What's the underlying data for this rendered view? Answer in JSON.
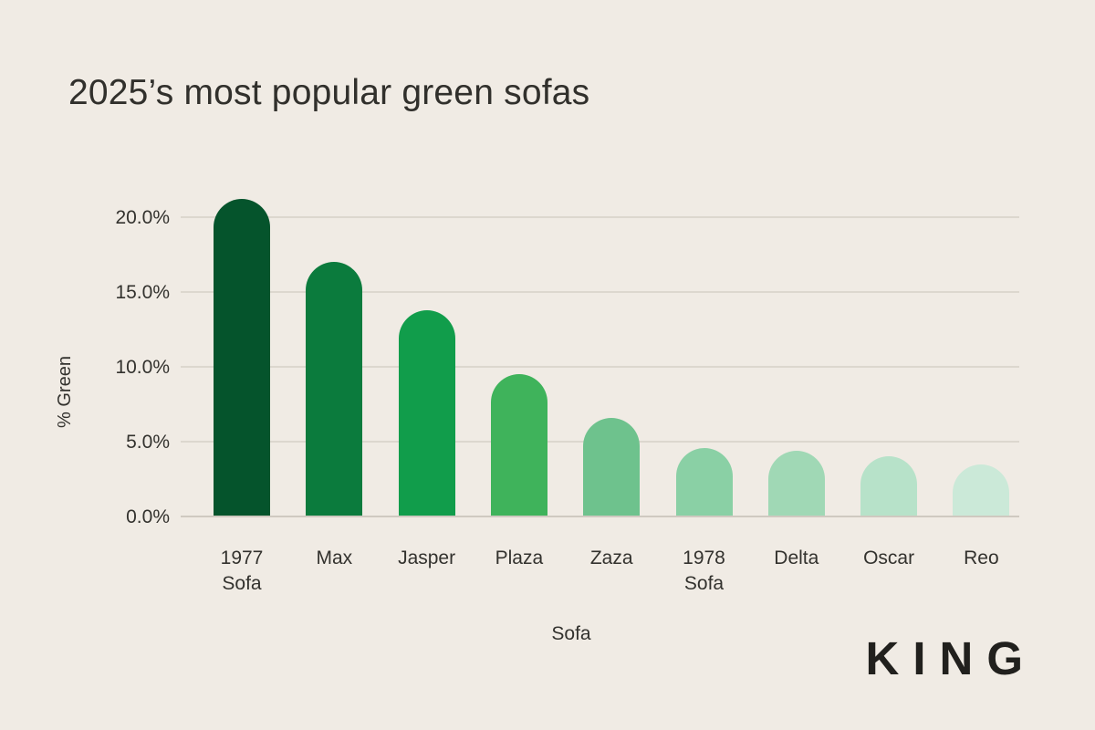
{
  "page": {
    "background": "#f0ebe4",
    "text_color": "#33322e",
    "gridline_color": "#dcd7ce",
    "baseline_color": "#cfc9c0"
  },
  "header": {
    "title": "2025’s most popular green sofas"
  },
  "brand": {
    "logo_text": "KING",
    "logo_color": "#21201d"
  },
  "chart_data": {
    "type": "bar",
    "title": "2025’s most popular green sofas",
    "xlabel": "Sofa",
    "ylabel": "% Green",
    "categories": [
      "1977 Sofa",
      "Max",
      "Jasper",
      "Plaza",
      "Zaza",
      "1978 Sofa",
      "Delta",
      "Oscar",
      "Reo"
    ],
    "category_display_labels": [
      "1977\nSofa",
      "Max",
      "Jasper",
      "Plaza",
      "Zaza",
      "1978\nSofa",
      "Delta",
      "Oscar",
      "Reo"
    ],
    "values": [
      21.2,
      17.0,
      13.8,
      9.5,
      6.6,
      4.6,
      4.4,
      4.0,
      3.5
    ],
    "bar_colors": [
      "#05542c",
      "#0b7b3d",
      "#119d4b",
      "#3fb35b",
      "#6ec28d",
      "#8ad0a5",
      "#a0d8b5",
      "#b7e2c9",
      "#cbe9d8"
    ],
    "y_ticks": [
      {
        "value": 20,
        "label": "20.0%"
      },
      {
        "value": 15,
        "label": "15.0%"
      },
      {
        "value": 10,
        "label": "10.0%"
      },
      {
        "value": 5,
        "label": "5.0%"
      },
      {
        "value": 0,
        "label": "0.0%"
      }
    ],
    "ylim": [
      0,
      21.7
    ],
    "grid": true,
    "legend": false,
    "bar_shape": "rounded-top"
  }
}
